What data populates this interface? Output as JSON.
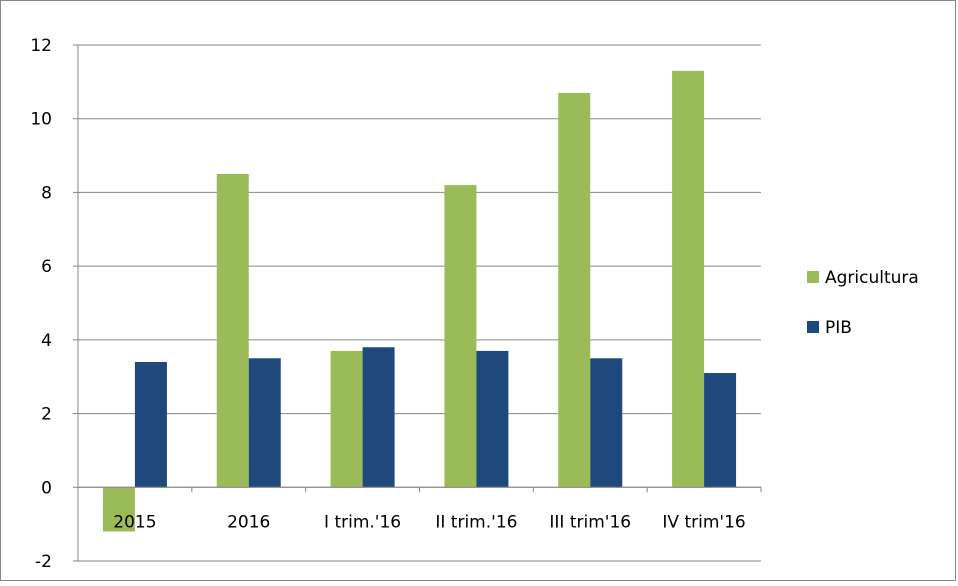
{
  "chart_data": {
    "type": "bar",
    "categories": [
      "2015",
      "2016",
      "I trim.'16",
      "II trim.'16",
      "III trim'16",
      "IV trim'16"
    ],
    "series": [
      {
        "name": "Agricultura",
        "color": "#9BBB59",
        "values": [
          -1.2,
          8.5,
          3.7,
          8.2,
          10.7,
          11.3
        ]
      },
      {
        "name": "PIB",
        "color": "#1F497D",
        "values": [
          3.4,
          3.5,
          3.8,
          3.7,
          3.5,
          3.1
        ]
      }
    ],
    "yticks": [
      "-2",
      "0",
      "2",
      "4",
      "6",
      "8",
      "10",
      "12"
    ],
    "ylim": [
      -2,
      12
    ],
    "grid": true,
    "legend_position": "right",
    "title": "",
    "xlabel": "",
    "ylabel": ""
  }
}
